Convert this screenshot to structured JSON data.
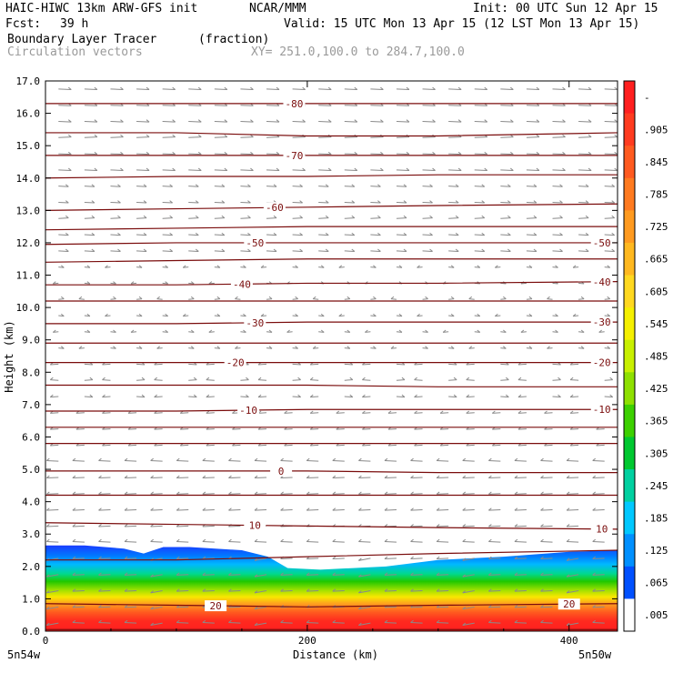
{
  "header": {
    "model": "HAIC-HIWC 13km ARW-GFS init",
    "org": "NCAR/MMM",
    "init": "Init: 00 UTC Sun 12 Apr 15",
    "fcst_label": "Fcst:",
    "fcst_value": "39 h",
    "valid": "Valid: 15 UTC Mon 13 Apr 15 (12 LST Mon 13 Apr 15)",
    "field": "Boundary Layer Tracer",
    "field_units": "(fraction)",
    "vectors": "Circulation vectors",
    "xy": "XY= 251.0,100.0 to 284.7,100.0"
  },
  "chart_data": {
    "type": "heatmap",
    "xlabel": "Distance (km)",
    "ylabel": "Height (km)",
    "xlim": [
      0,
      437
    ],
    "ylim": [
      0,
      17
    ],
    "x_ticks": [
      0,
      200,
      400
    ],
    "x_tick_labels": [
      "0",
      "200",
      "400"
    ],
    "y_ticks": [
      0,
      1,
      2,
      3,
      4,
      5,
      6,
      7,
      8,
      9,
      10,
      11,
      12,
      13,
      14,
      15,
      16,
      17
    ],
    "y_tick_labels": [
      "0.0",
      "1.0",
      "2.0",
      "3.0",
      "4.0",
      "5.0",
      "6.0",
      "7.0",
      "8.0",
      "9.0",
      "10.0",
      "11.0",
      "12.0",
      "13.0",
      "14.0",
      "15.0",
      "16.0",
      "17.0"
    ],
    "x_end_labels": [
      "5n54w",
      "5n50w"
    ],
    "colorbar": {
      "labels": [
        "-",
        ".905",
        ".845",
        ".785",
        ".725",
        ".665",
        ".605",
        ".545",
        ".485",
        ".425",
        ".365",
        ".305",
        ".245",
        ".185",
        ".125",
        ".065",
        ".005"
      ],
      "colors": [
        "#ff1f1f",
        "#ff3b1f",
        "#ff5a1f",
        "#ff7a1f",
        "#ff9a1f",
        "#ffb81f",
        "#ffd81f",
        "#f5f000",
        "#c8f000",
        "#8ee000",
        "#3cd000",
        "#00c830",
        "#00d0a0",
        "#00c8ff",
        "#0090ff",
        "#0050ff",
        "#ffffff"
      ]
    },
    "bl_top_profile": {
      "x": [
        0,
        30,
        60,
        75,
        90,
        110,
        150,
        170,
        185,
        210,
        260,
        300,
        350,
        400,
        437
      ],
      "top": [
        2.65,
        2.65,
        2.55,
        2.4,
        2.6,
        2.6,
        2.5,
        2.3,
        1.95,
        1.9,
        2.0,
        2.2,
        2.3,
        2.45,
        2.5
      ]
    },
    "temperature_contours": [
      {
        "level": "-80",
        "x": [
          0,
          100,
          200,
          300,
          437
        ],
        "y": [
          16.3,
          16.3,
          16.3,
          16.3,
          16.3
        ],
        "label_x": 190
      },
      {
        "level": "",
        "x": [
          0,
          100,
          200,
          300,
          437
        ],
        "y": [
          15.4,
          15.4,
          15.3,
          15.3,
          15.4
        ]
      },
      {
        "level": "-70",
        "x": [
          0,
          100,
          200,
          300,
          437
        ],
        "y": [
          14.7,
          14.7,
          14.7,
          14.7,
          14.7
        ],
        "label_x": 190
      },
      {
        "level": "",
        "x": [
          0,
          100,
          200,
          300,
          437
        ],
        "y": [
          14.0,
          14.05,
          14.05,
          14.1,
          14.1
        ]
      },
      {
        "level": "-60",
        "x": [
          0,
          100,
          200,
          300,
          437
        ],
        "y": [
          13.0,
          13.05,
          13.1,
          13.15,
          13.2
        ],
        "label_x": 175
      },
      {
        "level": "",
        "x": [
          0,
          100,
          200,
          300,
          437
        ],
        "y": [
          12.4,
          12.45,
          12.5,
          12.5,
          12.5
        ]
      },
      {
        "level": "-50",
        "x": [
          0,
          100,
          200,
          300,
          437
        ],
        "y": [
          11.95,
          12.0,
          12.0,
          12.0,
          12.0
        ],
        "label_x": 160,
        "label_x2": 425
      },
      {
        "level": "",
        "x": [
          0,
          100,
          200,
          300,
          437
        ],
        "y": [
          11.4,
          11.45,
          11.5,
          11.5,
          11.5
        ]
      },
      {
        "level": "-40",
        "x": [
          0,
          100,
          200,
          300,
          437
        ],
        "y": [
          10.7,
          10.7,
          10.75,
          10.75,
          10.8
        ],
        "label_x": 150,
        "label_x2": 425
      },
      {
        "level": "",
        "x": [
          0,
          100,
          200,
          300,
          437
        ],
        "y": [
          10.2,
          10.2,
          10.2,
          10.2,
          10.2
        ]
      },
      {
        "level": "-30",
        "x": [
          0,
          100,
          200,
          300,
          437
        ],
        "y": [
          9.5,
          9.5,
          9.55,
          9.55,
          9.55
        ],
        "label_x": 160,
        "label_x2": 425
      },
      {
        "level": "",
        "x": [
          0,
          100,
          200,
          300,
          437
        ],
        "y": [
          8.9,
          8.9,
          8.9,
          8.9,
          8.9
        ]
      },
      {
        "level": "-20",
        "x": [
          0,
          100,
          200,
          300,
          437
        ],
        "y": [
          8.3,
          8.3,
          8.3,
          8.3,
          8.3
        ],
        "label_x": 145,
        "label_x2": 425
      },
      {
        "level": "",
        "x": [
          0,
          100,
          200,
          300,
          437
        ],
        "y": [
          7.6,
          7.6,
          7.6,
          7.55,
          7.55
        ]
      },
      {
        "level": "-10",
        "x": [
          0,
          100,
          200,
          300,
          437
        ],
        "y": [
          6.8,
          6.8,
          6.85,
          6.85,
          6.85
        ],
        "label_x": 155,
        "label_x2": 425
      },
      {
        "level": "",
        "x": [
          0,
          100,
          200,
          300,
          437
        ],
        "y": [
          6.3,
          6.3,
          6.3,
          6.3,
          6.3
        ]
      },
      {
        "level": "",
        "x": [
          0,
          100,
          200,
          300,
          437
        ],
        "y": [
          5.8,
          5.8,
          5.8,
          5.8,
          5.8
        ]
      },
      {
        "level": "0",
        "x": [
          0,
          100,
          200,
          300,
          437
        ],
        "y": [
          4.95,
          4.95,
          4.95,
          4.9,
          4.9
        ],
        "label_x": 180
      },
      {
        "level": "",
        "x": [
          0,
          100,
          200,
          300,
          437
        ],
        "y": [
          4.2,
          4.2,
          4.2,
          4.2,
          4.2
        ]
      },
      {
        "level": "10",
        "x": [
          0,
          100,
          200,
          300,
          437
        ],
        "y": [
          3.35,
          3.3,
          3.25,
          3.2,
          3.15
        ],
        "label_x": 160,
        "label_x2": 425
      },
      {
        "level": "",
        "x": [
          0,
          100,
          200,
          300,
          437
        ],
        "y": [
          2.2,
          2.2,
          2.3,
          2.4,
          2.5
        ]
      },
      {
        "level": "20",
        "x": [
          0,
          100,
          200,
          300,
          437
        ],
        "y": [
          0.85,
          0.8,
          0.75,
          0.8,
          0.85
        ],
        "label_x": 130,
        "label_x2": 400
      },
      {
        "level": "",
        "x": [
          0,
          100,
          200,
          300,
          437
        ],
        "y": [
          0.05,
          0.05,
          0.05,
          0.05,
          0.05
        ]
      }
    ]
  }
}
